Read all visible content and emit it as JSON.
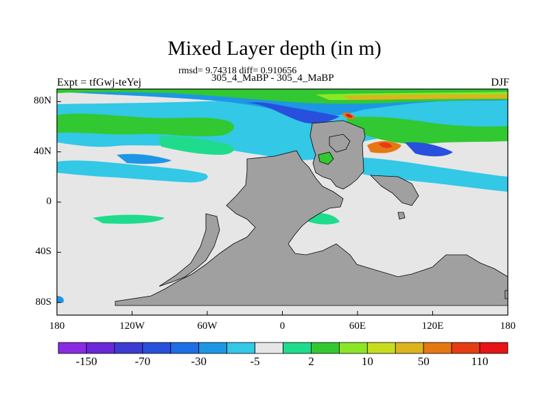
{
  "header": {
    "title": "Mixed Layer depth (in m)",
    "stats": "rmsd= 9.74318  diff= 0.910656",
    "subtitle": "305_4_MaBP - 305_4_MaBP",
    "left_label": "Expt = tfGwj-teYej",
    "right_label": "DJF"
  },
  "map": {
    "lon_ticks": [
      "180",
      "120W",
      "60W",
      "0",
      "60E",
      "120E",
      "180"
    ],
    "lat_ticks": [
      "80N",
      "40N",
      "0",
      "40S",
      "80S"
    ],
    "land_color": "#a0a0a0",
    "ocean_zero_color": "#e6e6e6"
  },
  "colorbar": {
    "colors": [
      "#8a2be2",
      "#6a28d8",
      "#3c3cd2",
      "#2850dc",
      "#1e6ee6",
      "#1e96e6",
      "#32c8e6",
      "#e6e6e6",
      "#1edc8c",
      "#32c832",
      "#8ce628",
      "#c8dc1e",
      "#dcb41e",
      "#e67814",
      "#e63c14",
      "#e61414"
    ],
    "labels": [
      "-150",
      "-70",
      "-30",
      "-5",
      "2",
      "10",
      "50",
      "110"
    ]
  }
}
